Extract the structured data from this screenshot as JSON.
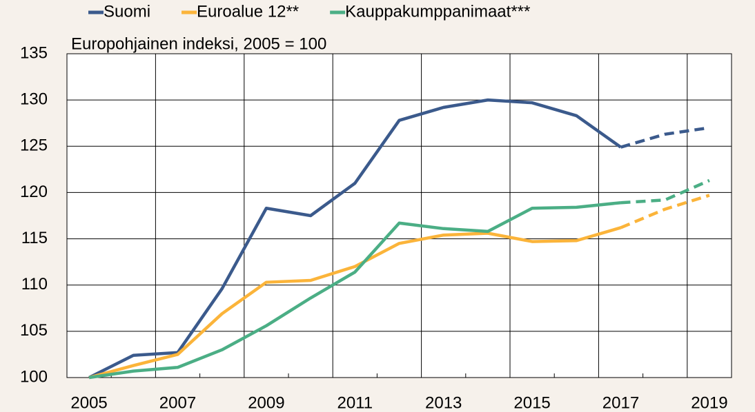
{
  "chart_data": {
    "type": "line",
    "subtitle": "Europohjainen indeksi, 2005 = 100",
    "categories": [
      "2005",
      null,
      "2007",
      null,
      "2009",
      null,
      "2011",
      null,
      "2013",
      null,
      "2015",
      null,
      "2017",
      null,
      "2019"
    ],
    "series": [
      {
        "name": "Suomi",
        "color": "#3b5a8c",
        "values": [
          100,
          102.4,
          102.7,
          109.6,
          118.3,
          117.5,
          121,
          127.8,
          129.2,
          130,
          129.7,
          128.3,
          124.9,
          126.3,
          127
        ]
      },
      {
        "name": "Euroalue 12**",
        "color": "#fbb43a",
        "values": [
          100,
          101.3,
          102.5,
          106.9,
          110.3,
          110.5,
          112,
          114.5,
          115.4,
          115.6,
          114.7,
          114.8,
          116.2,
          118.2,
          119.7
        ]
      },
      {
        "name": "Kauppakumppanimaat***",
        "color": "#4bae85",
        "values": [
          100,
          100.7,
          101.1,
          103,
          105.6,
          108.6,
          111.4,
          116.7,
          116.1,
          115.8,
          118.3,
          118.4,
          118.9,
          119.2,
          121.3
        ]
      }
    ],
    "dashed_from_index": 12,
    "ylim": [
      100,
      135
    ],
    "yticks": [
      100,
      105,
      110,
      115,
      120,
      125,
      130,
      135
    ],
    "grid": true
  }
}
